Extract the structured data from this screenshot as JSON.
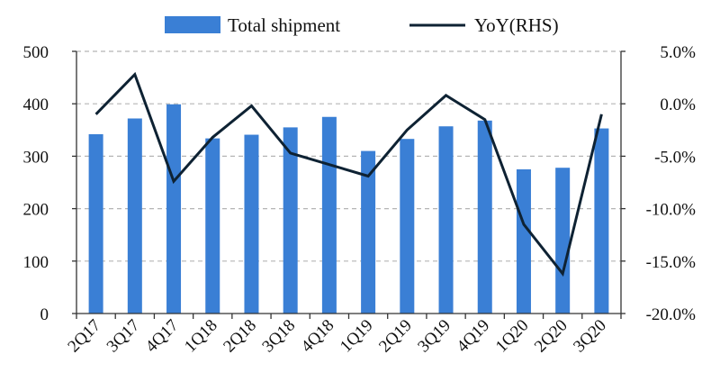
{
  "chart_data": {
    "type": "bar+line",
    "title": "",
    "categories": [
      "2Q17",
      "3Q17",
      "4Q17",
      "1Q18",
      "2Q18",
      "3Q18",
      "4Q18",
      "1Q19",
      "2Q19",
      "3Q19",
      "4Q19",
      "1Q20",
      "2Q20",
      "3Q20"
    ],
    "series": [
      {
        "name": "Total shipment",
        "type": "bar",
        "axis": "left",
        "color": "#3a7fd5",
        "values": [
          342,
          372,
          399,
          334,
          341,
          355,
          375,
          310,
          333,
          357,
          368,
          275,
          278,
          353
        ]
      },
      {
        "name": "YoY(RHS)",
        "type": "line",
        "axis": "right",
        "color": "#0e2233",
        "values": [
          -1.0,
          2.8,
          -7.4,
          -3.2,
          -0.2,
          -4.7,
          -5.8,
          -6.9,
          -2.5,
          0.8,
          -1.5,
          -11.5,
          -16.2,
          -1.0
        ]
      }
    ],
    "y_left": {
      "min": 0,
      "max": 500,
      "ticks": [
        "0",
        "100",
        "200",
        "300",
        "400",
        "500"
      ]
    },
    "y_right": {
      "min": -20,
      "max": 5,
      "ticks": [
        "-20.0%",
        "-15.0%",
        "-10.0%",
        "-5.0%",
        "0.0%",
        "5.0%"
      ]
    },
    "grid": "horizontal-dashed",
    "legend_position": "top"
  }
}
